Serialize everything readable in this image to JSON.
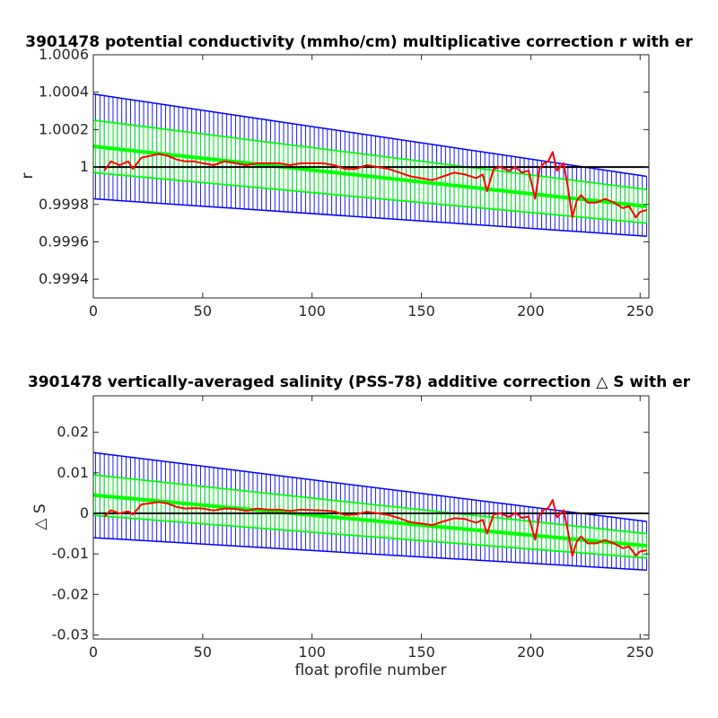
{
  "chart_data": [
    {
      "type": "line",
      "title": "3901478 potential conductivity (mmho/cm) multiplicative correction r with er",
      "xlabel": "",
      "ylabel": "r",
      "xlim": [
        0,
        254
      ],
      "ylim": [
        0.9993,
        1.0006
      ],
      "xticks": [
        0,
        50,
        100,
        150,
        200,
        250
      ],
      "yticks": [
        0.9994,
        0.9996,
        0.9998,
        1,
        1.0002,
        1.0004,
        1.0006
      ],
      "ytick_labels": [
        "0.9994",
        "0.9996",
        "0.9998",
        "1",
        "1.0002",
        "1.0004",
        "1.0006"
      ],
      "reference_line": 1,
      "grid": false,
      "colors": {
        "fit": "#00ff00",
        "error_band": "#0000ff",
        "profile": "#ff0000",
        "reference": "#000000"
      },
      "series": [
        {
          "role": "fit-with-errorbars",
          "color": "#00ff00",
          "x": [
            0,
            253
          ],
          "y": [
            1.00011,
            0.99979
          ],
          "error_halfwidth": [
            0.00014,
            9e-05
          ]
        },
        {
          "role": "envelope-with-errorbars",
          "color": "#0000ff",
          "x": [
            0,
            253
          ],
          "y": [
            1.00011,
            0.99979
          ],
          "error_halfwidth": [
            0.00028,
            0.00016
          ]
        },
        {
          "role": "profile-correction",
          "color": "#ff0000",
          "x": [
            5,
            8,
            12,
            16,
            18,
            22,
            26,
            30,
            34,
            38,
            42,
            46,
            50,
            55,
            60,
            65,
            70,
            75,
            80,
            85,
            90,
            95,
            100,
            105,
            110,
            115,
            120,
            125,
            130,
            135,
            140,
            145,
            150,
            155,
            160,
            165,
            170,
            175,
            178,
            180,
            183,
            186,
            190,
            193,
            196,
            199,
            202,
            204,
            206,
            208,
            210,
            212,
            215,
            217,
            219,
            221,
            223,
            226,
            230,
            234,
            238,
            242,
            245,
            248,
            250,
            253
          ],
          "y": [
            0.99998,
            1.00003,
            1.00001,
            1.00003,
            0.99999,
            1.00005,
            1.00006,
            1.00007,
            1.00006,
            1.00004,
            1.00003,
            1.00003,
            1.00002,
            1.00001,
            1.00003,
            1.00002,
            1.00001,
            1.00002,
            1.00002,
            1.00002,
            1.00001,
            1.00002,
            1.00002,
            1.00002,
            1.00001,
            0.99999,
            0.99999,
            1.00001,
            1.0,
            0.99999,
            0.99997,
            0.99995,
            0.99994,
            0.99993,
            0.99995,
            0.99997,
            0.99996,
            0.99994,
            0.99996,
            0.99987,
            0.99999,
            1.0,
            0.99998,
            1.0,
            0.99997,
            0.99998,
            0.99983,
            0.99999,
            1.00002,
            1.00003,
            1.00008,
            0.99998,
            1.00002,
            0.99989,
            0.99973,
            0.99982,
            0.99985,
            0.99981,
            0.99981,
            0.99983,
            0.99981,
            0.99978,
            0.99979,
            0.99973,
            0.99976,
            0.99977
          ]
        }
      ]
    },
    {
      "type": "line",
      "title": "3901478 vertically-averaged salinity (PSS-78) additive correction △ S with er",
      "xlabel": "float profile number",
      "ylabel": "△ S",
      "xlim": [
        0,
        254
      ],
      "ylim": [
        -0.031,
        0.029
      ],
      "xticks": [
        0,
        50,
        100,
        150,
        200,
        250
      ],
      "yticks": [
        -0.03,
        -0.02,
        -0.01,
        0,
        0.01,
        0.02
      ],
      "ytick_labels": [
        "-0.03",
        "-0.02",
        "-0.01",
        "0",
        "0.01",
        "0.02"
      ],
      "reference_line": 0,
      "grid": false,
      "colors": {
        "fit": "#00ff00",
        "error_band": "#0000ff",
        "profile": "#ff0000",
        "reference": "#000000"
      },
      "series": [
        {
          "role": "fit-with-errorbars",
          "color": "#00ff00",
          "x": [
            0,
            253
          ],
          "y": [
            0.0045,
            -0.008
          ],
          "error_halfwidth": [
            0.005,
            0.003
          ]
        },
        {
          "role": "envelope-with-errorbars",
          "color": "#0000ff",
          "x": [
            0,
            253
          ],
          "y": [
            0.0045,
            -0.008
          ],
          "error_halfwidth": [
            0.0105,
            0.006
          ]
        },
        {
          "role": "profile-correction",
          "color": "#ff0000",
          "x": [
            5,
            8,
            12,
            16,
            18,
            22,
            26,
            30,
            34,
            38,
            42,
            46,
            50,
            55,
            60,
            65,
            70,
            75,
            80,
            85,
            90,
            95,
            100,
            105,
            110,
            115,
            120,
            125,
            130,
            135,
            140,
            145,
            150,
            155,
            160,
            165,
            170,
            175,
            178,
            180,
            183,
            186,
            190,
            193,
            196,
            199,
            202,
            204,
            206,
            208,
            210,
            212,
            215,
            217,
            219,
            221,
            223,
            226,
            230,
            234,
            238,
            242,
            245,
            248,
            250,
            253
          ],
          "y": [
            -0.0008,
            0.0008,
            0.0,
            0.0005,
            -0.0003,
            0.0022,
            0.0025,
            0.0028,
            0.0024,
            0.0016,
            0.0012,
            0.0013,
            0.0012,
            0.0007,
            0.0012,
            0.0011,
            0.0006,
            0.0012,
            0.0009,
            0.0009,
            0.0006,
            0.0009,
            0.0008,
            0.0007,
            0.0005,
            -0.0004,
            -0.0003,
            0.0004,
            0.0,
            -0.0004,
            -0.0012,
            -0.0022,
            -0.0025,
            -0.0029,
            -0.002,
            -0.0012,
            -0.0014,
            -0.0023,
            -0.0016,
            -0.005,
            -0.0003,
            0.0,
            -0.0009,
            0.0001,
            -0.0011,
            -0.0008,
            -0.0065,
            -0.0005,
            0.0009,
            0.0013,
            0.0033,
            -0.001,
            0.0008,
            -0.0044,
            -0.0105,
            -0.007,
            -0.0057,
            -0.0074,
            -0.0074,
            -0.0066,
            -0.0074,
            -0.0086,
            -0.0082,
            -0.0104,
            -0.0094,
            -0.0091
          ]
        }
      ]
    }
  ]
}
